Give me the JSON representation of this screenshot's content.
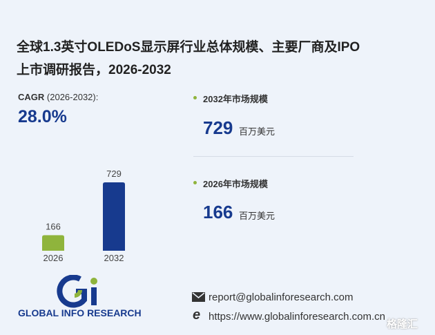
{
  "title_lines": [
    "全球1.3英寸OLEDoS显示屏行业总体规模、主要厂商及IPO",
    "上市调研报告，2026-2032"
  ],
  "cagr": {
    "label": "CAGR",
    "period": "(2026-2032):",
    "value": "28.0%"
  },
  "chart_data": {
    "type": "bar",
    "categories": [
      "2026",
      "2032"
    ],
    "values": [
      166,
      729
    ],
    "colors": [
      "#8fb43c",
      "#173a8e"
    ]
  },
  "stats": [
    {
      "label": "2032年市场规模",
      "value": 729,
      "unit": "百万美元"
    },
    {
      "label": "2026年市场规模",
      "value": 166,
      "unit": "百万美元"
    }
  ],
  "footer": {
    "logo_text": "GLOBAL INFO RESEARCH",
    "email": "report@globalinforesearch.com",
    "website": "https://www.globalinforesearch.com.cn",
    "watermark": "格隆汇"
  }
}
